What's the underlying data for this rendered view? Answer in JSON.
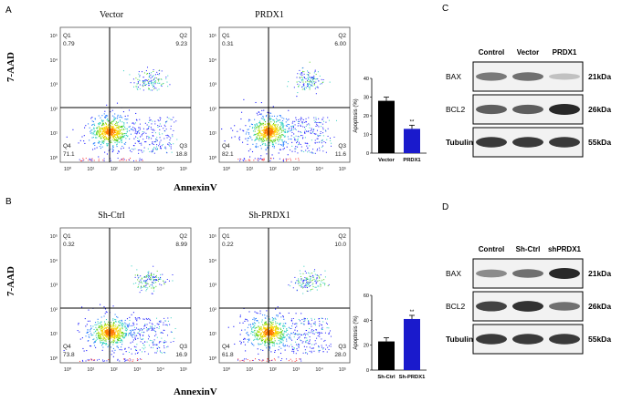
{
  "panel_a": {
    "label": "A",
    "axis_y": "7-AAD",
    "axis_x": "AnnexinV",
    "plots": [
      {
        "title": "Vector",
        "q1": "0.79",
        "q2": "9.23",
        "q3": "18.8",
        "q4": "71.1"
      },
      {
        "title": "PRDX1",
        "q1": "0.31",
        "q2": "6.00",
        "q3": "11.6",
        "q4": "82.1"
      }
    ]
  },
  "panel_b": {
    "label": "B",
    "axis_y": "7-AAD",
    "axis_x": "AnnexinV",
    "plots": [
      {
        "title": "Sh-Ctrl",
        "q1": "0.32",
        "q2": "8.99",
        "q3": "16.9",
        "q4": "73.8"
      },
      {
        "title": "Sh-PRDX1",
        "q1": "0.22",
        "q2": "10.0",
        "q3": "28.0",
        "q4": "61.8"
      }
    ]
  },
  "flow_axis_ticks": {
    "x": [
      "10⁰",
      "10¹",
      "10²",
      "10³",
      "10⁴",
      "10⁵"
    ],
    "y": [
      "10⁵",
      "10⁴",
      "10³",
      "10²",
      "10¹",
      "10⁰"
    ]
  },
  "chart_data": [
    {
      "type": "bar",
      "categories": [
        "Vector",
        "PRDX1"
      ],
      "values": [
        28,
        13
      ],
      "colors": [
        "#000000",
        "#1a1acc"
      ],
      "ylabel": "Apoptosis (%)",
      "ylim": [
        0,
        40
      ],
      "yticks": [
        "0",
        "10",
        "20",
        "30",
        "40"
      ],
      "significance": [
        "",
        "**"
      ]
    },
    {
      "type": "bar",
      "categories": [
        "Sh-Ctrl",
        "Sh-PRDX1"
      ],
      "values": [
        23,
        41
      ],
      "colors": [
        "#000000",
        "#1a1acc"
      ],
      "ylabel": "Apoptosis (%)",
      "ylim": [
        0,
        60
      ],
      "yticks": [
        "0",
        "20",
        "40",
        "60"
      ],
      "significance": [
        "",
        "**"
      ]
    }
  ],
  "panel_c": {
    "label": "C",
    "lanes": [
      "Control",
      "Vector",
      "PRDX1"
    ],
    "rows": [
      {
        "protein": "BAX",
        "kda": "21kDa",
        "intensities": [
          0.55,
          0.6,
          0.15
        ]
      },
      {
        "protein": "BCL2",
        "kda": "26kDa",
        "intensities": [
          0.7,
          0.7,
          1.0
        ]
      },
      {
        "protein": "Tubulin",
        "kda": "55kDa",
        "intensities": [
          0.9,
          0.9,
          0.9
        ]
      }
    ]
  },
  "panel_d": {
    "label": "D",
    "lanes": [
      "Control",
      "Sh-Ctrl",
      "shPRDX1"
    ],
    "rows": [
      {
        "protein": "BAX",
        "kda": "21kDa",
        "intensities": [
          0.45,
          0.6,
          1.0
        ]
      },
      {
        "protein": "BCL2",
        "kda": "26kDa",
        "intensities": [
          0.85,
          0.95,
          0.6
        ]
      },
      {
        "protein": "Tubulin",
        "kda": "55kDa",
        "intensities": [
          0.9,
          0.9,
          0.9
        ]
      }
    ]
  }
}
